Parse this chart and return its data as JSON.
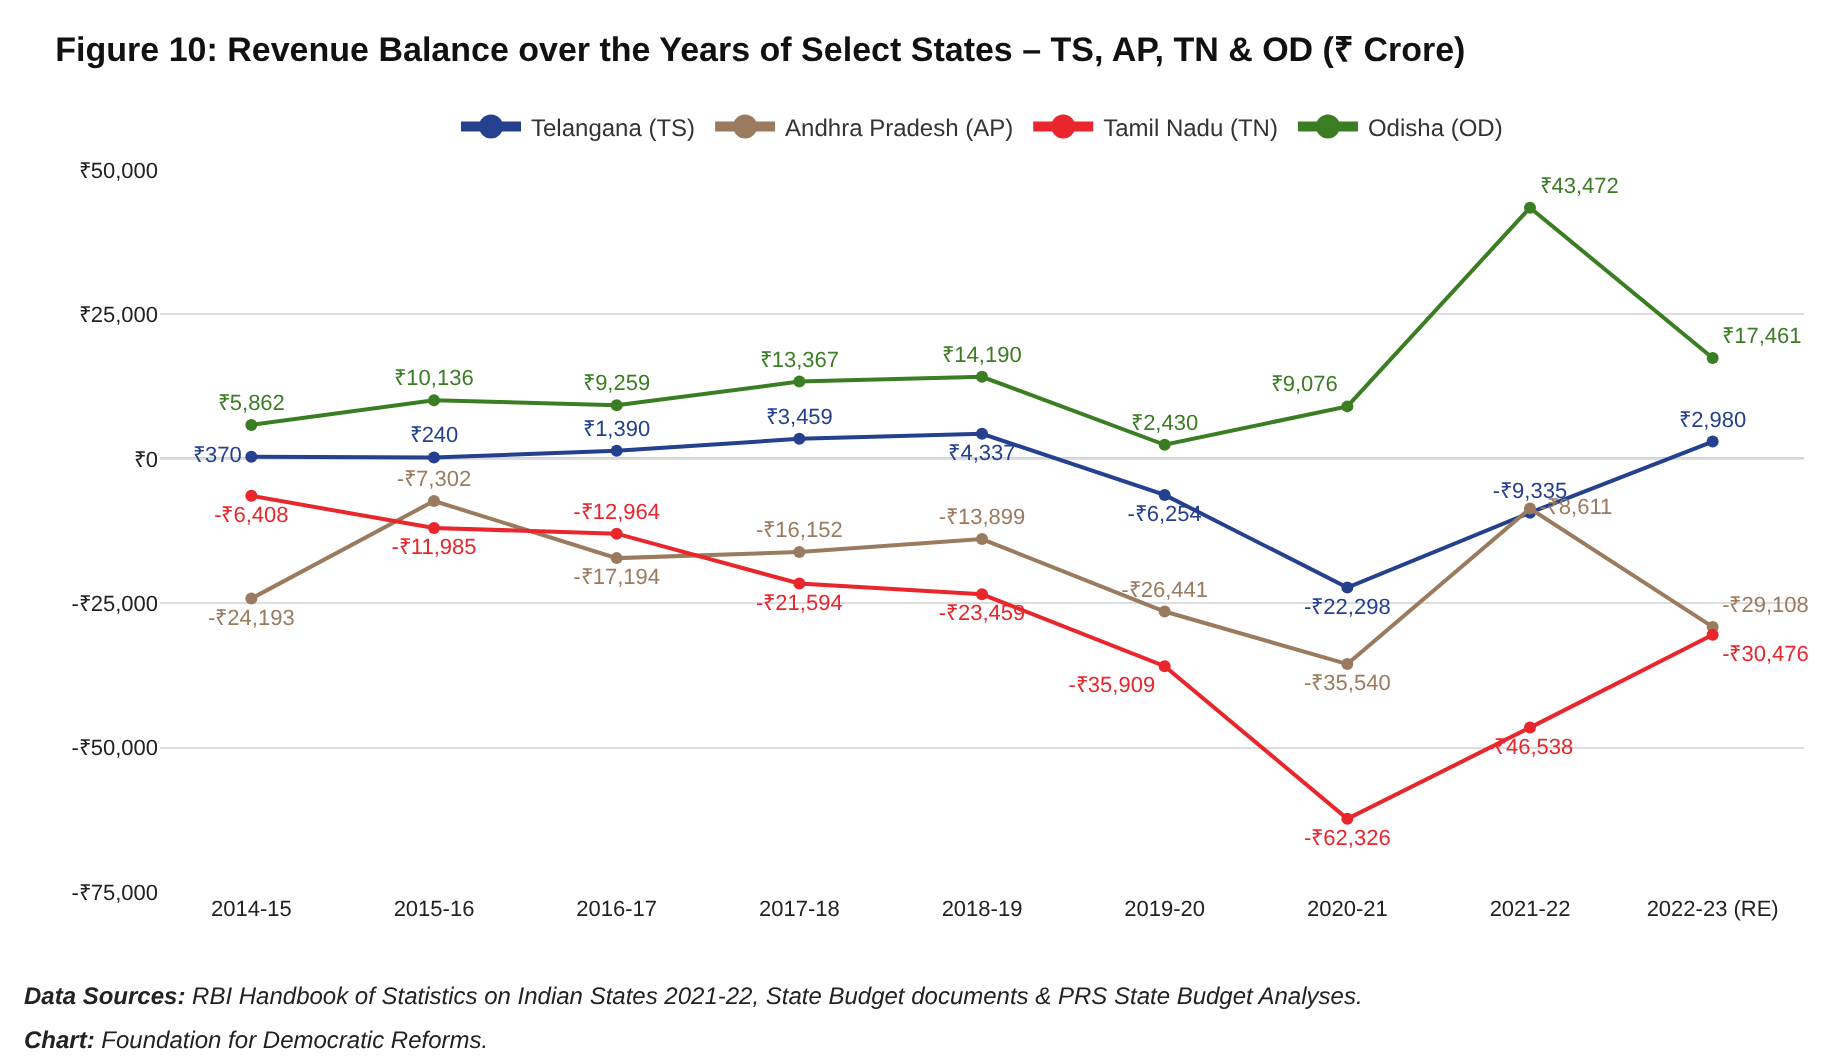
{
  "chart_data": {
    "type": "line",
    "title": "Figure 10: Revenue Balance over the Years of Select States – TS, AP, TN & OD (₹ Crore)",
    "categories": [
      "2014-15",
      "2015-16",
      "2016-17",
      "2017-18",
      "2018-19",
      "2019-20",
      "2020-21",
      "2021-22",
      "2022-23 (RE)"
    ],
    "series": [
      {
        "name": "Telangana (TS)",
        "color": "#24408e",
        "values": [
          370,
          240,
          1390,
          3459,
          4337,
          -6254,
          -22298,
          -9335,
          2980
        ],
        "value_labels": [
          "₹370",
          "₹240",
          "₹1,390",
          "₹3,459",
          "₹4,337",
          "-₹6,254",
          "-₹22,298",
          "-₹9,335",
          "₹2,980"
        ]
      },
      {
        "name": "Andhra Pradesh (AP)",
        "color": "#9b7b5f",
        "values": [
          -24193,
          -7302,
          -17194,
          -16152,
          -13899,
          -26441,
          -35540,
          -8611,
          -29108
        ],
        "value_labels": [
          "-₹24,193",
          "-₹7,302",
          "-₹17,194",
          "-₹16,152",
          "-₹13,899",
          "-₹26,441",
          "-₹35,540",
          "-₹8,611",
          "-₹29,108"
        ]
      },
      {
        "name": "Tamil Nadu (TN)",
        "color": "#e8262b",
        "values": [
          -6408,
          -11985,
          -12964,
          -21594,
          -23459,
          -35909,
          -62326,
          -46538,
          -30476
        ],
        "value_labels": [
          "-₹6,408",
          "-₹11,985",
          "-₹12,964",
          "-₹21,594",
          "-₹23,459",
          "-₹35,909",
          "-₹62,326",
          "-₹46,538",
          "-₹30,476"
        ]
      },
      {
        "name": "Odisha (OD)",
        "color": "#3b7d23",
        "values": [
          5862,
          10136,
          9259,
          13367,
          14190,
          2430,
          9076,
          43472,
          17461
        ],
        "value_labels": [
          "₹5,862",
          "₹10,136",
          "₹9,259",
          "₹13,367",
          "₹14,190",
          "₹2,430",
          "₹9,076",
          "₹43,472",
          "₹17,461"
        ]
      }
    ],
    "ylim": [
      -75000,
      50000
    ],
    "yticks": [
      {
        "value": -75000,
        "label": "-₹75,000"
      },
      {
        "value": -50000,
        "label": "-₹50,000"
      },
      {
        "value": -25000,
        "label": "-₹25,000"
      },
      {
        "value": 0,
        "label": "₹0"
      },
      {
        "value": 25000,
        "label": "₹25,000"
      },
      {
        "value": 50000,
        "label": "₹50,000"
      }
    ],
    "grid": "y",
    "ref_lines": [
      {
        "axis": "y",
        "value": 0,
        "label": null,
        "color": "#444444"
      }
    ],
    "legend": "top",
    "marker": "circle",
    "line_style": "solid",
    "annotations": [
      "Data Sources: RBI Handbook of Statistics on Indian States 2021-22, State Budget documents & PRS State Budget Analyses.",
      "Chart: Foundation for Democratic Reforms."
    ]
  }
}
